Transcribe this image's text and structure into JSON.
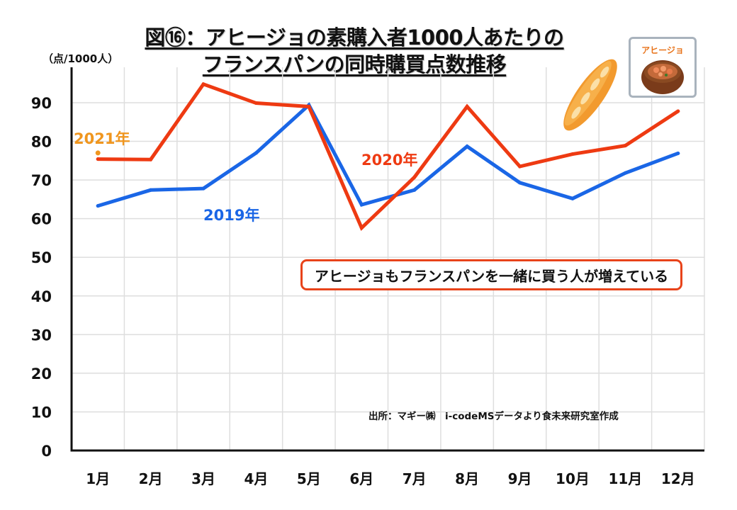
{
  "header": {
    "title_line1": "図⑯：アヒージョの素購入者1000人あたりの",
    "title_line2": "フランスパンの同時購買点数推移",
    "unit": "（点/1000人）"
  },
  "annotations": {
    "note": "アヒージョもフランスパンを一緒に買う人が増えている",
    "source": "出所：マギー㈱　i-codeMSデータより食未来研究室作成",
    "image_card_caption": "アヒージョ",
    "image_card_icon": "ajillo-dish-icon",
    "bread_icon": "baguette-icon"
  },
  "chart_data": {
    "type": "line",
    "title": "図⑯：アヒージョの素購入者1000人あたりのフランスパンの同時購買点数推移",
    "xlabel": "",
    "ylabel": "（点/1000人）",
    "categories": [
      "1月",
      "2月",
      "3月",
      "4月",
      "5月",
      "6月",
      "7月",
      "8月",
      "9月",
      "10月",
      "11月",
      "12月"
    ],
    "yticks": [
      0,
      10,
      20,
      30,
      40,
      50,
      60,
      70,
      80,
      90
    ],
    "ylim": [
      0,
      98
    ],
    "grid": true,
    "legend": "inline-labels",
    "series": [
      {
        "name": "2019年",
        "color": "#1a66e6",
        "values": [
          63.3,
          67.4,
          67.8,
          77.0,
          89.4,
          63.6,
          67.4,
          78.7,
          69.3,
          65.2,
          71.8,
          76.9
        ]
      },
      {
        "name": "2020年",
        "color": "#ee3a12",
        "values": [
          75.4,
          75.3,
          94.8,
          89.9,
          89.0,
          57.6,
          70.7,
          89.0,
          73.5,
          76.7,
          78.9,
          87.8
        ]
      },
      {
        "name": "2021年",
        "color": "#f0961e",
        "values": [
          77.0,
          null,
          null,
          null,
          null,
          null,
          null,
          null,
          null,
          null,
          null,
          null
        ]
      }
    ]
  }
}
